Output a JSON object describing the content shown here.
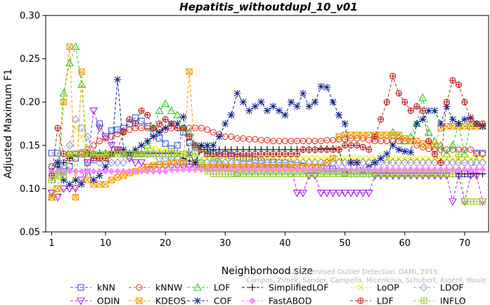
{
  "chart_data": {
    "type": "line",
    "title": "Hepatitis_withoutdupl_10_v01",
    "xlabel": "Neighborhood size",
    "ylabel": "Adjusted Maximum F1",
    "xlim": [
      0,
      74
    ],
    "ylim": [
      0.05,
      0.3
    ],
    "x_ticks": [
      1,
      10,
      20,
      30,
      40,
      50,
      60,
      70
    ],
    "y_ticks": [
      "0.05",
      "0.10",
      "0.15",
      "0.20",
      "0.25",
      "0.30"
    ],
    "grid": false,
    "legend_position": "bottom",
    "watermark": {
      "line1": "Unsupervised Outlier Detection. DAMI, 2015.",
      "line2": "Campos, Zimek, Sander, Campello, Micenkova, Schubert, Assent, Houle"
    },
    "series": [
      {
        "name": "kNN",
        "color": "#3355dd",
        "marker": "square",
        "values": [
          0.141,
          0.141,
          0.12,
          0.126,
          0.135,
          0.14,
          0.13,
          0.133,
          0.175,
          0.16,
          0.167,
          0.168,
          0.17,
          0.175,
          0.182,
          0.178,
          0.172,
          0.165,
          0.158,
          0.152,
          0.146,
          0.15,
          0.165,
          0.153,
          0.148,
          0.146,
          0.144,
          0.141,
          0.138,
          0.14,
          0.138,
          0.136,
          0.135,
          0.135,
          0.133,
          0.132,
          0.13,
          0.131,
          0.13,
          0.13,
          0.128,
          0.127,
          0.126,
          0.125,
          0.124,
          0.124,
          0.123,
          0.123,
          0.12,
          0.118,
          0.117,
          0.117,
          0.117,
          0.117,
          0.117,
          0.117,
          0.117,
          0.117,
          0.117,
          0.117,
          0.117,
          0.117,
          0.117,
          0.117,
          0.117,
          0.117,
          0.117,
          0.117,
          0.117,
          0.117,
          0.117,
          0.141,
          0.141
        ]
      },
      {
        "name": "kNNW",
        "color": "#e03b2e",
        "marker": "circle",
        "values": [
          0.126,
          0.13,
          0.13,
          0.135,
          0.14,
          0.142,
          0.145,
          0.15,
          0.155,
          0.158,
          0.16,
          0.163,
          0.166,
          0.168,
          0.17,
          0.17,
          0.17,
          0.17,
          0.168,
          0.168,
          0.17,
          0.17,
          0.17,
          0.17,
          0.17,
          0.17,
          0.168,
          0.165,
          0.163,
          0.16,
          0.16,
          0.158,
          0.158,
          0.157,
          0.157,
          0.156,
          0.156,
          0.155,
          0.155,
          0.155,
          0.155,
          0.155,
          0.155,
          0.155,
          0.155,
          0.155,
          0.156,
          0.156,
          0.157,
          0.157,
          0.158,
          0.158,
          0.158,
          0.156,
          0.155,
          0.155,
          0.155,
          0.155,
          0.155,
          0.155,
          0.155,
          0.15,
          0.148,
          0.146,
          0.145,
          0.145,
          0.145,
          0.145,
          0.145,
          0.145,
          0.145,
          0.14,
          0.14
        ]
      },
      {
        "name": "LOF",
        "color": "#22cc22",
        "marker": "triangle-up",
        "values": [
          0.09,
          0.12,
          0.21,
          0.245,
          0.264,
          0.22,
          0.14,
          0.14,
          0.14,
          0.14,
          0.14,
          0.14,
          0.14,
          0.14,
          0.14,
          0.14,
          0.15,
          0.17,
          0.19,
          0.198,
          0.19,
          0.185,
          0.17,
          0.165,
          0.15,
          0.148,
          0.14,
          0.135,
          0.13,
          0.125,
          0.12,
          0.118,
          0.117,
          0.117,
          0.117,
          0.117,
          0.117,
          0.117,
          0.117,
          0.117,
          0.117,
          0.117,
          0.117,
          0.117,
          0.117,
          0.117,
          0.117,
          0.117,
          0.117,
          0.117,
          0.117,
          0.117,
          0.117,
          0.117,
          0.117,
          0.117,
          0.117,
          0.165,
          0.16,
          0.155,
          0.16,
          0.175,
          0.205,
          0.165,
          0.155,
          0.15,
          0.14,
          0.15,
          0.175,
          0.14,
          0.175,
          0.175,
          0.172
        ]
      },
      {
        "name": "SimplifiedLOF",
        "color": "#000000",
        "marker": "plus",
        "values": [
          0.11,
          0.125,
          0.13,
          0.135,
          0.14,
          0.14,
          0.141,
          0.141,
          0.141,
          0.141,
          0.141,
          0.141,
          0.141,
          0.141,
          0.141,
          0.141,
          0.141,
          0.141,
          0.141,
          0.141,
          0.141,
          0.141,
          0.135,
          0.132,
          0.13,
          0.145,
          0.145,
          0.145,
          0.145,
          0.145,
          0.145,
          0.145,
          0.145,
          0.145,
          0.145,
          0.145,
          0.145,
          0.145,
          0.145,
          0.145,
          0.145,
          0.145,
          0.145,
          0.145,
          0.145,
          0.146,
          0.146,
          0.146,
          0.145,
          0.12,
          0.117,
          0.117,
          0.117,
          0.117,
          0.117,
          0.117,
          0.117,
          0.117,
          0.117,
          0.117,
          0.117,
          0.117,
          0.117,
          0.117,
          0.117,
          0.117,
          0.117,
          0.117,
          0.117,
          0.117,
          0.117,
          0.117,
          0.117
        ]
      },
      {
        "name": "LoOP",
        "color": "#e8e800",
        "marker": "x",
        "values": [
          0.1,
          0.095,
          0.12,
          0.14,
          0.17,
          0.16,
          0.14,
          0.14,
          0.135,
          0.14,
          0.141,
          0.141,
          0.141,
          0.14,
          0.14,
          0.14,
          0.145,
          0.147,
          0.145,
          0.145,
          0.145,
          0.14,
          0.14,
          0.135,
          0.13,
          0.135,
          0.135,
          0.135,
          0.135,
          0.135,
          0.135,
          0.135,
          0.135,
          0.135,
          0.135,
          0.135,
          0.135,
          0.135,
          0.135,
          0.135,
          0.135,
          0.135,
          0.135,
          0.135,
          0.135,
          0.135,
          0.135,
          0.135,
          0.135,
          0.135,
          0.135,
          0.135,
          0.135,
          0.135,
          0.135,
          0.135,
          0.135,
          0.135,
          0.135,
          0.135,
          0.135,
          0.135,
          0.135,
          0.135,
          0.135,
          0.135,
          0.135,
          0.135,
          0.135,
          0.135,
          0.135,
          0.135,
          0.135
        ]
      },
      {
        "name": "LDOF",
        "color": "#9999dd",
        "marker": "diamond",
        "values": [
          0.125,
          0.13,
          0.13,
          0.15,
          0.18,
          0.17,
          0.16,
          0.14,
          0.13,
          0.13,
          0.13,
          0.13,
          0.13,
          0.135,
          0.14,
          0.14,
          0.14,
          0.14,
          0.135,
          0.135,
          0.135,
          0.135,
          0.13,
          0.13,
          0.13,
          0.13,
          0.13,
          0.13,
          0.13,
          0.13,
          0.13,
          0.13,
          0.13,
          0.13,
          0.13,
          0.13,
          0.13,
          0.13,
          0.13,
          0.13,
          0.13,
          0.13,
          0.13,
          0.13,
          0.13,
          0.13,
          0.13,
          0.13,
          0.13,
          0.13,
          0.13,
          0.13,
          0.13,
          0.13,
          0.13,
          0.13,
          0.13,
          0.13,
          0.13,
          0.13,
          0.13,
          0.13,
          0.13,
          0.13,
          0.13,
          0.13,
          0.13,
          0.13,
          0.13,
          0.13,
          0.13,
          0.13,
          0.13
        ]
      },
      {
        "name": "ODIN",
        "color": "#aa22dd",
        "marker": "triangle-down",
        "values": [
          0.095,
          0.09,
          0.1,
          0.1,
          0.1,
          0.11,
          0.13,
          0.19,
          0.17,
          0.16,
          0.15,
          0.145,
          0.14,
          0.135,
          0.13,
          0.13,
          0.125,
          0.125,
          0.125,
          0.125,
          0.125,
          0.125,
          0.125,
          0.125,
          0.125,
          0.125,
          0.125,
          0.125,
          0.125,
          0.125,
          0.125,
          0.125,
          0.125,
          0.125,
          0.125,
          0.125,
          0.125,
          0.125,
          0.125,
          0.125,
          0.125,
          0.095,
          0.095,
          0.115,
          0.115,
          0.095,
          0.095,
          0.095,
          0.095,
          0.095,
          0.095,
          0.095,
          0.095,
          0.095,
          0.115,
          0.115,
          0.115,
          0.115,
          0.115,
          0.115,
          0.115,
          0.115,
          0.115,
          0.115,
          0.115,
          0.115,
          0.115,
          0.085,
          0.115,
          0.085,
          0.115,
          0.115,
          0.085
        ]
      },
      {
        "name": "KDEOS",
        "color": "#ee9900",
        "marker": "square-x",
        "values": [
          0.09,
          0.1,
          0.2,
          0.264,
          0.09,
          0.235,
          0.11,
          0.105,
          0.105,
          0.105,
          0.11,
          0.113,
          0.115,
          0.118,
          0.12,
          0.122,
          0.125,
          0.127,
          0.128,
          0.128,
          0.13,
          0.13,
          0.13,
          0.235,
          0.13,
          0.125,
          0.125,
          0.125,
          0.125,
          0.125,
          0.125,
          0.125,
          0.125,
          0.125,
          0.125,
          0.125,
          0.125,
          0.125,
          0.125,
          0.125,
          0.125,
          0.125,
          0.125,
          0.125,
          0.125,
          0.125,
          0.13,
          0.135,
          0.16,
          0.162,
          0.162,
          0.162,
          0.162,
          0.162,
          0.162,
          0.162,
          0.162,
          0.162,
          0.162,
          0.158,
          0.155,
          0.155,
          0.152,
          0.15,
          0.15,
          0.17,
          0.172,
          0.172,
          0.172,
          0.172,
          0.172,
          0.172,
          0.172
        ]
      },
      {
        "name": "COF",
        "color": "#112288",
        "marker": "asterisk",
        "values": [
          0.12,
          0.13,
          0.11,
          0.105,
          0.11,
          0.105,
          0.12,
          0.11,
          0.115,
          0.125,
          0.14,
          0.226,
          0.145,
          0.14,
          0.145,
          0.15,
          0.155,
          0.16,
          0.165,
          0.17,
          0.175,
          0.175,
          0.183,
          0.14,
          0.13,
          0.15,
          0.15,
          0.15,
          0.16,
          0.175,
          0.185,
          0.21,
          0.2,
          0.19,
          0.195,
          0.2,
          0.19,
          0.195,
          0.19,
          0.185,
          0.2,
          0.195,
          0.21,
          0.195,
          0.2,
          0.218,
          0.217,
          0.2,
          0.185,
          0.175,
          0.13,
          0.13,
          0.12,
          0.125,
          0.13,
          0.135,
          0.14,
          0.15,
          0.145,
          0.143,
          0.142,
          0.175,
          0.18,
          0.19,
          0.19,
          0.175,
          0.195,
          0.18,
          0.175,
          0.18,
          0.182,
          0.175,
          0.172
        ]
      },
      {
        "name": "FastABOD",
        "color": "#ff88ff",
        "marker": "diamond-filled",
        "values": [
          0.12,
          0.12,
          0.12,
          0.12,
          0.12,
          0.12,
          0.12,
          0.12,
          0.12,
          0.12,
          0.12,
          0.12,
          0.12,
          0.12,
          0.12,
          0.12,
          0.12,
          0.12,
          0.12,
          0.12,
          0.122,
          0.122,
          0.122,
          0.122,
          0.122,
          0.122,
          0.122,
          0.122,
          0.122,
          0.122,
          0.122,
          0.122,
          0.122,
          0.122,
          0.122,
          0.122,
          0.122,
          0.122,
          0.122,
          0.122,
          0.122,
          0.122,
          0.122,
          0.122,
          0.122,
          0.122,
          0.122,
          0.122,
          0.122,
          0.122,
          0.122,
          0.122,
          0.122,
          0.122,
          0.122,
          0.122,
          0.122,
          0.122,
          0.122,
          0.122,
          0.122,
          0.122,
          0.122,
          0.122,
          0.122,
          0.122,
          0.122,
          0.122,
          0.122,
          0.122,
          0.122,
          0.122,
          0.122
        ]
      },
      {
        "name": "LDF",
        "color": "#bb2222",
        "marker": "circle-plus",
        "values": [
          0.115,
          0.17,
          0.14,
          0.14,
          0.14,
          0.14,
          0.14,
          0.135,
          0.135,
          0.135,
          0.14,
          0.145,
          0.165,
          0.18,
          0.175,
          0.19,
          0.185,
          0.17,
          0.175,
          0.18,
          0.175,
          0.17,
          0.17,
          0.16,
          0.15,
          0.145,
          0.14,
          0.14,
          0.14,
          0.14,
          0.14,
          0.14,
          0.14,
          0.14,
          0.14,
          0.14,
          0.14,
          0.14,
          0.14,
          0.14,
          0.14,
          0.14,
          0.145,
          0.145,
          0.145,
          0.145,
          0.145,
          0.145,
          0.145,
          0.15,
          0.15,
          0.15,
          0.148,
          0.145,
          0.16,
          0.18,
          0.2,
          0.23,
          0.21,
          0.2,
          0.19,
          0.195,
          0.19,
          0.155,
          0.14,
          0.13,
          0.2,
          0.225,
          0.22,
          0.2,
          0.18,
          0.175,
          0.175
        ]
      },
      {
        "name": "INFLO",
        "color": "#99cc33",
        "marker": "square-plus",
        "values": [
          0.11,
          0.115,
          0.115,
          0.14,
          0.14,
          0.14,
          0.14,
          0.14,
          0.14,
          0.14,
          0.14,
          0.14,
          0.14,
          0.14,
          0.14,
          0.14,
          0.14,
          0.14,
          0.14,
          0.14,
          0.14,
          0.14,
          0.14,
          0.14,
          0.14,
          0.13,
          0.12,
          0.117,
          0.117,
          0.117,
          0.117,
          0.117,
          0.117,
          0.117,
          0.117,
          0.117,
          0.117,
          0.117,
          0.117,
          0.117,
          0.117,
          0.117,
          0.117,
          0.117,
          0.117,
          0.117,
          0.117,
          0.117,
          0.117,
          0.117,
          0.117,
          0.117,
          0.117,
          0.117,
          0.117,
          0.117,
          0.117,
          0.117,
          0.117,
          0.117,
          0.117,
          0.117,
          0.117,
          0.117,
          0.117,
          0.117,
          0.117,
          0.117,
          0.14,
          0.085,
          0.085,
          0.085,
          0.085
        ]
      }
    ]
  }
}
